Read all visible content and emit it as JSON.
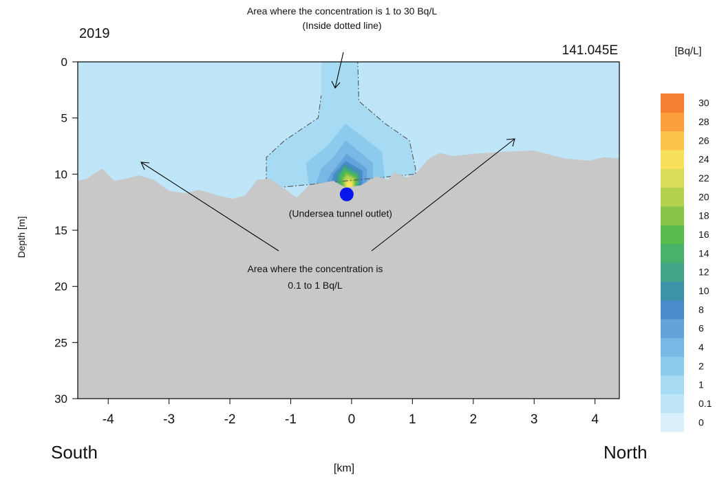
{
  "chart_data": {
    "type": "heatmap",
    "year_label": "2019",
    "section_label": "141.045E",
    "xlabel": "[km]",
    "ylabel": "Depth [m]",
    "xlim": [
      -4.5,
      4.4
    ],
    "ylim": [
      30,
      0
    ],
    "x_ticks": [
      -4,
      -3,
      -2,
      -1,
      0,
      1,
      2,
      3,
      4
    ],
    "y_ticks": [
      0,
      5,
      10,
      15,
      20,
      25,
      30
    ],
    "south_label": "South",
    "north_label": "North",
    "colorbar": {
      "unit": "[Bq/L]",
      "levels": [
        "0",
        "0.1",
        "1",
        "2",
        "4",
        "6",
        "8",
        "10",
        "12",
        "14",
        "16",
        "18",
        "20",
        "22",
        "24",
        "26",
        "28",
        "30"
      ],
      "colors": [
        "#daf0fc",
        "#bfe6f8",
        "#a6dbf3",
        "#8dcbee",
        "#79b7e4",
        "#64a3d9",
        "#4a8cca",
        "#3c93a8",
        "#42a58a",
        "#49b26a",
        "#59bb4c",
        "#88c54a",
        "#b3d250",
        "#d9dc56",
        "#f9e05c",
        "#fbc34a",
        "#fa9f3c",
        "#f57f31"
      ]
    },
    "seabed_profile": [
      [
        -4.5,
        10.6
      ],
      [
        -4.35,
        10.4
      ],
      [
        -4.1,
        9.5
      ],
      [
        -3.9,
        10.6
      ],
      [
        -3.7,
        10.4
      ],
      [
        -3.5,
        10.1
      ],
      [
        -3.25,
        10.5
      ],
      [
        -3.0,
        11.5
      ],
      [
        -2.75,
        11.7
      ],
      [
        -2.5,
        11.4
      ],
      [
        -2.2,
        11.9
      ],
      [
        -1.95,
        12.2
      ],
      [
        -1.75,
        11.9
      ],
      [
        -1.55,
        10.5
      ],
      [
        -1.35,
        10.4
      ],
      [
        -1.1,
        11.3
      ],
      [
        -0.9,
        12.1
      ],
      [
        -0.7,
        11.0
      ],
      [
        -0.5,
        10.8
      ],
      [
        -0.3,
        10.6
      ],
      [
        -0.1,
        11.2
      ],
      [
        0.15,
        11.0
      ],
      [
        0.4,
        10.2
      ],
      [
        0.6,
        10.5
      ],
      [
        0.7,
        9.8
      ],
      [
        0.9,
        10.3
      ],
      [
        1.05,
        10.0
      ],
      [
        1.25,
        8.7
      ],
      [
        1.45,
        8.1
      ],
      [
        1.65,
        8.4
      ],
      [
        2.0,
        8.2
      ],
      [
        2.5,
        8.0
      ],
      [
        3.0,
        7.9
      ],
      [
        3.5,
        8.6
      ],
      [
        3.9,
        8.8
      ],
      [
        4.15,
        8.5
      ],
      [
        4.4,
        8.6
      ]
    ],
    "outlet": {
      "x": -0.08,
      "depth": 11.8,
      "label": "(Undersea tunnel outlet)"
    },
    "plume": [
      {
        "level": "0.1-1",
        "color": "#bfe6f8",
        "polygon": "background"
      },
      {
        "level": "1-2",
        "color": "#a6dbf3",
        "polygon": [
          [
            -0.5,
            0
          ],
          [
            0.1,
            0
          ],
          [
            0.12,
            3.5
          ],
          [
            0.55,
            5.5
          ],
          [
            0.95,
            7.0
          ],
          [
            1.05,
            9.5
          ],
          [
            1.05,
            10.0
          ],
          [
            -1.4,
            11.3
          ],
          [
            -1.4,
            8.5
          ],
          [
            -1.1,
            7.0
          ],
          [
            -0.55,
            5.0
          ],
          [
            -0.5,
            3.0
          ]
        ]
      },
      {
        "level": "2-4",
        "color": "#8dcbee",
        "polygon": [
          [
            -0.1,
            5.5
          ],
          [
            0.5,
            8.0
          ],
          [
            0.55,
            10.5
          ],
          [
            -0.7,
            11.1
          ],
          [
            -0.75,
            9.0
          ],
          [
            -0.4,
            7.5
          ]
        ]
      },
      {
        "level": "4-6",
        "color": "#79b7e4",
        "polygon": [
          [
            -0.1,
            7.0
          ],
          [
            0.35,
            9.0
          ],
          [
            0.35,
            10.6
          ],
          [
            -0.6,
            11.1
          ],
          [
            -0.5,
            9.5
          ],
          [
            -0.3,
            8.5
          ]
        ]
      },
      {
        "level": "6-8",
        "color": "#64a3d9",
        "polygon": [
          [
            -0.08,
            8.2
          ],
          [
            0.25,
            9.5
          ],
          [
            0.25,
            10.9
          ],
          [
            -0.45,
            11.2
          ],
          [
            -0.35,
            10.0
          ]
        ]
      },
      {
        "level": "8-10",
        "color": "#4a8cca",
        "polygon": [
          [
            -0.1,
            8.8
          ],
          [
            0.18,
            9.7
          ],
          [
            0.18,
            11.0
          ],
          [
            -0.35,
            11.2
          ],
          [
            -0.3,
            10.0
          ]
        ]
      },
      {
        "level": "10-12",
        "color": "#3c93a8",
        "polygon": [
          [
            -0.12,
            9.1
          ],
          [
            0.14,
            9.8
          ],
          [
            0.14,
            11.1
          ],
          [
            -0.3,
            11.2
          ],
          [
            -0.25,
            10.0
          ]
        ]
      },
      {
        "level": "12-14",
        "color": "#42a58a",
        "polygon": [
          [
            -0.12,
            9.3
          ],
          [
            0.12,
            10.0
          ],
          [
            0.12,
            11.15
          ],
          [
            -0.25,
            11.2
          ],
          [
            -0.22,
            10.1
          ]
        ]
      },
      {
        "level": "14-16",
        "color": "#49b26a",
        "polygon": [
          [
            -0.12,
            9.5
          ],
          [
            0.1,
            10.1
          ],
          [
            0.1,
            11.2
          ],
          [
            -0.22,
            11.2
          ],
          [
            -0.2,
            10.2
          ]
        ]
      },
      {
        "level": "16-18",
        "color": "#59bb4c",
        "polygon": [
          [
            -0.1,
            9.7
          ],
          [
            0.08,
            10.2
          ],
          [
            0.08,
            11.2
          ],
          [
            -0.18,
            11.2
          ],
          [
            -0.17,
            10.3
          ]
        ]
      },
      {
        "level": "18-20",
        "color": "#88c54a",
        "polygon": [
          [
            -0.09,
            9.9
          ],
          [
            0.06,
            10.3
          ],
          [
            0.06,
            11.2
          ],
          [
            -0.15,
            11.2
          ],
          [
            -0.14,
            10.4
          ]
        ]
      },
      {
        "level": "20-22",
        "color": "#b3d250",
        "polygon": [
          [
            -0.08,
            10.1
          ],
          [
            0.04,
            10.4
          ],
          [
            0.04,
            11.2
          ],
          [
            -0.12,
            11.2
          ],
          [
            -0.12,
            10.5
          ]
        ]
      },
      {
        "level": "22-24",
        "color": "#d9dc56",
        "polygon": [
          [
            -0.06,
            10.4
          ],
          [
            0.02,
            10.6
          ],
          [
            0.02,
            11.2
          ],
          [
            -0.1,
            11.2
          ],
          [
            -0.1,
            10.7
          ]
        ]
      },
      {
        "level": "24-26",
        "color": "#f9e05c",
        "polygon": [
          [
            -0.05,
            10.6
          ],
          [
            0.01,
            10.8
          ],
          [
            0.01,
            11.2
          ],
          [
            -0.08,
            11.2
          ],
          [
            -0.08,
            10.8
          ]
        ]
      }
    ],
    "annotations": {
      "top_text_1": "Area where the concentration is 1 to 30 Bq/L",
      "top_text_2": "(Inside dotted line)",
      "mid_text_1": "Area where the concentration is",
      "mid_text_2": "0.1 to 1 Bq/L"
    }
  }
}
